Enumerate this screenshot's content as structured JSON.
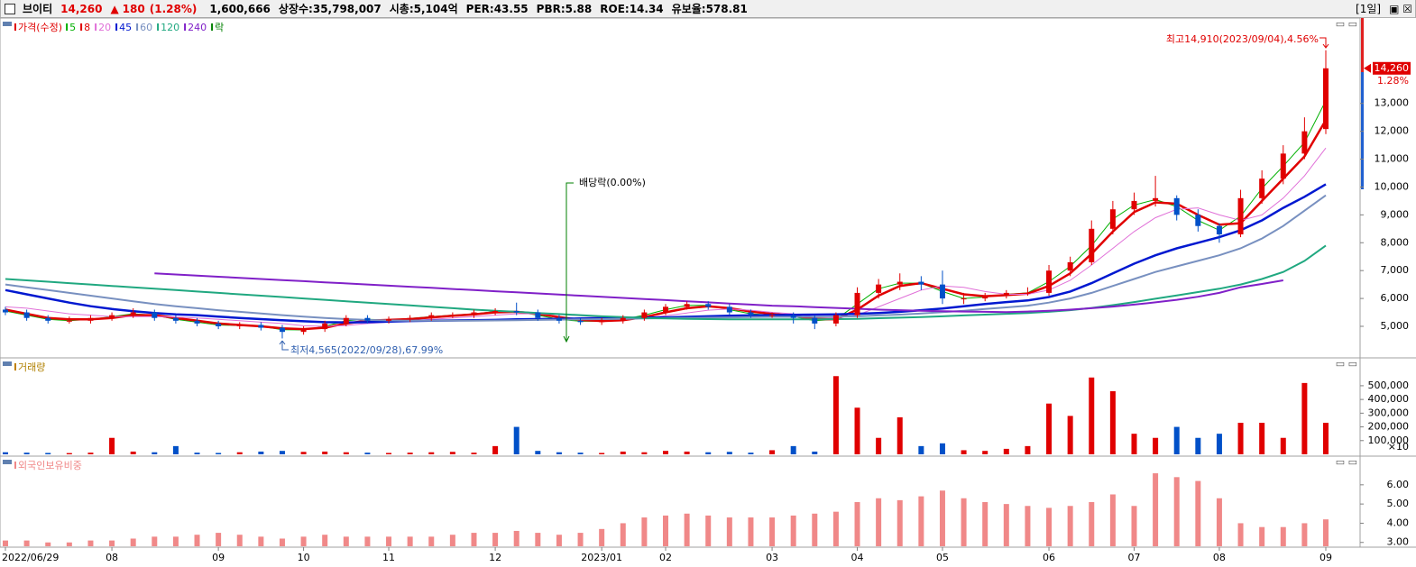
{
  "header": {
    "name": "브이티",
    "price": "14,260",
    "arrow": "▲",
    "change": "180",
    "change_pct": "(1.28%)",
    "volume": "1,600,666",
    "listed": "상장수:35,798,007",
    "market_cap": "시총:5,104억",
    "per": "PER:43.55",
    "pbr": "PBR:5.88",
    "roe": "ROE:14.34",
    "reserve": "유보율:578.81",
    "period": "[1일]"
  },
  "chart_data": [
    {
      "type": "candlestick",
      "legend_title": "가격(수정)",
      "up_color": "#e00000",
      "down_color": "#0050c8",
      "open": [
        5600,
        5500,
        5300,
        5200,
        5200,
        5300,
        5400,
        5500,
        5300,
        5200,
        5100,
        5000,
        5050,
        4950,
        4800,
        4900,
        5100,
        5300,
        5200,
        5250,
        5300,
        5400,
        5400,
        5500,
        5550,
        5500,
        5300,
        5200,
        5150,
        5200,
        5300,
        5500,
        5700,
        5800,
        5700,
        5500,
        5400,
        5400,
        5300,
        5100,
        5400,
        6200,
        6500,
        6600,
        6500,
        6000,
        6000,
        6100,
        6200,
        6200,
        7000,
        7300,
        8500,
        9200,
        9500,
        9600,
        9000,
        8600,
        8300,
        9600,
        10300,
        11200,
        12080
      ],
      "high": [
        5700,
        5600,
        5400,
        5350,
        5400,
        5500,
        5650,
        5600,
        5400,
        5300,
        5200,
        5150,
        5150,
        5050,
        5000,
        5200,
        5400,
        5400,
        5350,
        5400,
        5500,
        5500,
        5600,
        5650,
        5850,
        5600,
        5400,
        5300,
        5300,
        5400,
        5600,
        5800,
        5900,
        5900,
        5800,
        5600,
        5500,
        5500,
        5400,
        5500,
        6400,
        6700,
        6900,
        6800,
        7000,
        6200,
        6200,
        6300,
        6400,
        7200,
        7500,
        8800,
        9500,
        9800,
        10400,
        9700,
        9200,
        8700,
        9900,
        10600,
        11500,
        12500,
        14910
      ],
      "low": [
        5400,
        5200,
        5100,
        5100,
        5100,
        5200,
        5300,
        5200,
        5100,
        5000,
        4900,
        4900,
        4850,
        4565,
        4700,
        4800,
        5000,
        5100,
        5100,
        5150,
        5200,
        5300,
        5300,
        5400,
        5400,
        5200,
        5100,
        5050,
        5050,
        5100,
        5200,
        5400,
        5600,
        5600,
        5400,
        5300,
        5300,
        5100,
        4900,
        5000,
        5300,
        6000,
        6300,
        6300,
        5800,
        5800,
        5900,
        6000,
        6100,
        6100,
        6800,
        7200,
        8300,
        9000,
        9300,
        8800,
        8400,
        8000,
        8200,
        9400,
        10100,
        11000,
        11900
      ],
      "close": [
        5500,
        5300,
        5200,
        5200,
        5300,
        5400,
        5500,
        5300,
        5200,
        5100,
        5000,
        5050,
        4950,
        4800,
        4900,
        5100,
        5300,
        5200,
        5250,
        5300,
        5400,
        5400,
        5500,
        5550,
        5500,
        5300,
        5200,
        5150,
        5200,
        5300,
        5500,
        5700,
        5800,
        5700,
        5500,
        5400,
        5400,
        5300,
        5100,
        5400,
        6200,
        6500,
        6600,
        6500,
        6000,
        6000,
        6100,
        6200,
        6200,
        7000,
        7300,
        8500,
        9200,
        9500,
        9600,
        9000,
        8600,
        8300,
        9600,
        10300,
        11200,
        12000,
        14260
      ],
      "series": [
        {
          "name": "5",
          "color": "#00b000",
          "width": 1,
          "values": [
            5550,
            5400,
            5250,
            5200,
            5250,
            5350,
            5450,
            5400,
            5250,
            5150,
            5050,
            5030,
            5000,
            4880,
            4870,
            5000,
            5200,
            5250,
            5230,
            5280,
            5350,
            5400,
            5450,
            5530,
            5520,
            5400,
            5250,
            5180,
            5180,
            5250,
            5400,
            5600,
            5750,
            5750,
            5600,
            5450,
            5400,
            5350,
            5200,
            5250,
            5800,
            6350,
            6550,
            6550,
            6250,
            6000,
            6050,
            6150,
            6200,
            6600,
            7150,
            7900,
            8850,
            9350,
            9550,
            9300,
            8800,
            8450,
            8950,
            9950,
            10750,
            11600,
            13100
          ]
        },
        {
          "name": "8",
          "color": "#e00000",
          "width": 2.5,
          "values": [
            5600,
            5450,
            5300,
            5250,
            5250,
            5300,
            5400,
            5400,
            5300,
            5200,
            5100,
            5050,
            5000,
            4930,
            4900,
            4950,
            5100,
            5200,
            5230,
            5260,
            5320,
            5380,
            5430,
            5500,
            5520,
            5450,
            5330,
            5230,
            5190,
            5220,
            5330,
            5500,
            5650,
            5720,
            5650,
            5530,
            5450,
            5380,
            5270,
            5250,
            5600,
            6100,
            6450,
            6550,
            6350,
            6150,
            6080,
            6120,
            6170,
            6450,
            6900,
            7600,
            8400,
            9100,
            9450,
            9400,
            9000,
            8650,
            8700,
            9500,
            10300,
            11100,
            12400
          ]
        },
        {
          "name": "20",
          "color": "#e070d8",
          "width": 1,
          "values": [
            5700,
            5650,
            5550,
            5450,
            5400,
            5350,
            5350,
            5350,
            5330,
            5300,
            5250,
            5200,
            5150,
            5100,
            5020,
            5000,
            5030,
            5100,
            5150,
            5200,
            5250,
            5300,
            5350,
            5400,
            5450,
            5450,
            5420,
            5380,
            5330,
            5300,
            5300,
            5380,
            5480,
            5580,
            5620,
            5580,
            5500,
            5450,
            5350,
            5300,
            5400,
            5700,
            6000,
            6300,
            6450,
            6400,
            6250,
            6150,
            6150,
            6300,
            6650,
            7200,
            7800,
            8400,
            8900,
            9200,
            9250,
            9000,
            8800,
            9000,
            9600,
            10400,
            11400
          ]
        },
        {
          "name": "45",
          "color": "#0018d0",
          "width": 2.5,
          "values": [
            6300,
            6150,
            6000,
            5850,
            5720,
            5620,
            5540,
            5480,
            5430,
            5400,
            5350,
            5300,
            5260,
            5220,
            5180,
            5150,
            5140,
            5150,
            5170,
            5190,
            5200,
            5210,
            5220,
            5230,
            5250,
            5260,
            5270,
            5280,
            5290,
            5300,
            5310,
            5320,
            5340,
            5360,
            5380,
            5390,
            5400,
            5410,
            5420,
            5430,
            5450,
            5480,
            5520,
            5580,
            5640,
            5720,
            5800,
            5870,
            5930,
            6050,
            6250,
            6550,
            6900,
            7250,
            7550,
            7800,
            8000,
            8200,
            8450,
            8800,
            9250,
            9650,
            10100
          ]
        },
        {
          "name": "60",
          "color": "#7890c0",
          "width": 2,
          "values": [
            6500,
            6400,
            6300,
            6200,
            6100,
            6000,
            5900,
            5800,
            5720,
            5650,
            5580,
            5520,
            5460,
            5400,
            5350,
            5300,
            5260,
            5230,
            5210,
            5200,
            5200,
            5200,
            5200,
            5210,
            5220,
            5230,
            5240,
            5250,
            5260,
            5270,
            5280,
            5290,
            5300,
            5310,
            5320,
            5330,
            5340,
            5340,
            5340,
            5350,
            5360,
            5390,
            5420,
            5460,
            5510,
            5560,
            5620,
            5680,
            5740,
            5850,
            6000,
            6200,
            6450,
            6700,
            6950,
            7150,
            7350,
            7550,
            7800,
            8150,
            8600,
            9150,
            9700
          ]
        },
        {
          "name": "120",
          "color": "#20a880",
          "width": 2,
          "values": [
            6700,
            6650,
            6600,
            6550,
            6500,
            6450,
            6400,
            6350,
            6300,
            6250,
            6200,
            6150,
            6100,
            6050,
            6000,
            5950,
            5900,
            5850,
            5800,
            5750,
            5700,
            5650,
            5600,
            5560,
            5520,
            5480,
            5440,
            5400,
            5360,
            5330,
            5300,
            5280,
            5270,
            5260,
            5250,
            5250,
            5250,
            5250,
            5250,
            5260,
            5270,
            5290,
            5310,
            5330,
            5360,
            5390,
            5420,
            5450,
            5480,
            5520,
            5580,
            5660,
            5760,
            5870,
            5990,
            6110,
            6230,
            6350,
            6500,
            6700,
            6950,
            7350,
            7900
          ]
        },
        {
          "name": "240",
          "color": "#8020c8",
          "width": 2,
          "values": [
            null,
            null,
            null,
            null,
            null,
            null,
            null,
            6900,
            6860,
            6820,
            6780,
            6740,
            6700,
            6660,
            6620,
            6580,
            6540,
            6500,
            6460,
            6420,
            6380,
            6340,
            6300,
            6260,
            6220,
            6180,
            6140,
            6100,
            6060,
            6020,
            5980,
            5940,
            5900,
            5860,
            5820,
            5780,
            5740,
            5720,
            5690,
            5660,
            5630,
            5600,
            5580,
            5560,
            5540,
            5530,
            5520,
            5510,
            5530,
            5560,
            5600,
            5650,
            5710,
            5780,
            5860,
            5950,
            6060,
            6200,
            6400,
            6520,
            6650
          ]
        }
      ],
      "dividend_label": "락",
      "dividend_color": "#008000",
      "ylim": [
        3900,
        16000
      ],
      "yticks": [
        {
          "value": 5000,
          "label": "5,000"
        },
        {
          "value": 6000,
          "label": "6,000"
        },
        {
          "value": 7000,
          "label": "7,000"
        },
        {
          "value": 8000,
          "label": "8,000"
        },
        {
          "value": 9000,
          "label": "9,000"
        },
        {
          "value": 10000,
          "label": "10,000"
        },
        {
          "value": 11000,
          "label": "11,000"
        },
        {
          "value": 12000,
          "label": "12,000"
        },
        {
          "value": 13000,
          "label": "13,000"
        }
      ],
      "annotations": {
        "high": "최고14,910(2023/09/04),4.56%",
        "low": "최저4,565(2022/09/28),67.99%",
        "dividend": "배당락(0.00%)",
        "last_price": "14,260",
        "last_pct": "1.28%"
      }
    },
    {
      "type": "bar",
      "title": "거래량",
      "unit": "×10",
      "values": [
        15000,
        12000,
        10000,
        9000,
        12000,
        120000,
        20000,
        15000,
        60000,
        12000,
        10000,
        15000,
        20000,
        25000,
        18000,
        20000,
        15000,
        12000,
        10000,
        12000,
        15000,
        18000,
        12000,
        60000,
        200000,
        25000,
        15000,
        12000,
        10000,
        20000,
        15000,
        25000,
        20000,
        15000,
        18000,
        12000,
        30000,
        60000,
        20000,
        570000,
        340000,
        120000,
        270000,
        60000,
        80000,
        30000,
        25000,
        40000,
        60000,
        370000,
        280000,
        560000,
        460000,
        150000,
        120000,
        200000,
        120000,
        150000,
        230000,
        230000,
        120000,
        520000,
        230000
      ],
      "ylim": [
        0,
        690000
      ],
      "yticks": [
        {
          "value": 100000,
          "label": "100,000"
        },
        {
          "value": 200000,
          "label": "200,000"
        },
        {
          "value": 300000,
          "label": "300,000"
        },
        {
          "value": 400000,
          "label": "400,000"
        },
        {
          "value": 500000,
          "label": "500,000"
        }
      ]
    },
    {
      "type": "bar",
      "title": "외국인보유비중",
      "color": "#f08888",
      "values": [
        3.1,
        3.1,
        3.0,
        3.0,
        3.1,
        3.1,
        3.2,
        3.3,
        3.3,
        3.4,
        3.5,
        3.4,
        3.3,
        3.2,
        3.3,
        3.4,
        3.3,
        3.3,
        3.3,
        3.3,
        3.3,
        3.4,
        3.5,
        3.5,
        3.6,
        3.5,
        3.4,
        3.5,
        3.7,
        4.0,
        4.3,
        4.4,
        4.5,
        4.4,
        4.3,
        4.3,
        4.3,
        4.4,
        4.5,
        4.6,
        5.1,
        5.3,
        5.2,
        5.4,
        5.7,
        5.3,
        5.1,
        5.0,
        4.9,
        4.8,
        4.9,
        5.1,
        5.5,
        4.9,
        6.6,
        6.4,
        6.2,
        5.3,
        4.0,
        3.8,
        3.8,
        4.0,
        4.2
      ],
      "categories": [
        "2022/06/29",
        null,
        null,
        null,
        null,
        "08",
        null,
        null,
        null,
        null,
        "09",
        null,
        null,
        null,
        "10",
        null,
        null,
        null,
        "11",
        null,
        null,
        null,
        null,
        "12",
        null,
        null,
        null,
        null,
        "2023/01",
        null,
        null,
        "02",
        null,
        null,
        null,
        null,
        "03",
        null,
        null,
        null,
        "04",
        null,
        null,
        null,
        "05",
        null,
        null,
        null,
        null,
        "06",
        null,
        null,
        null,
        "07",
        null,
        null,
        null,
        "08",
        null,
        null,
        null,
        null,
        "09"
      ],
      "ylim": [
        2.8,
        7.4
      ],
      "yticks": [
        {
          "value": 3,
          "label": "3.00"
        },
        {
          "value": 4,
          "label": "4.00"
        },
        {
          "value": 5,
          "label": "5.00"
        },
        {
          "value": 6,
          "label": "6.00"
        }
      ]
    }
  ]
}
